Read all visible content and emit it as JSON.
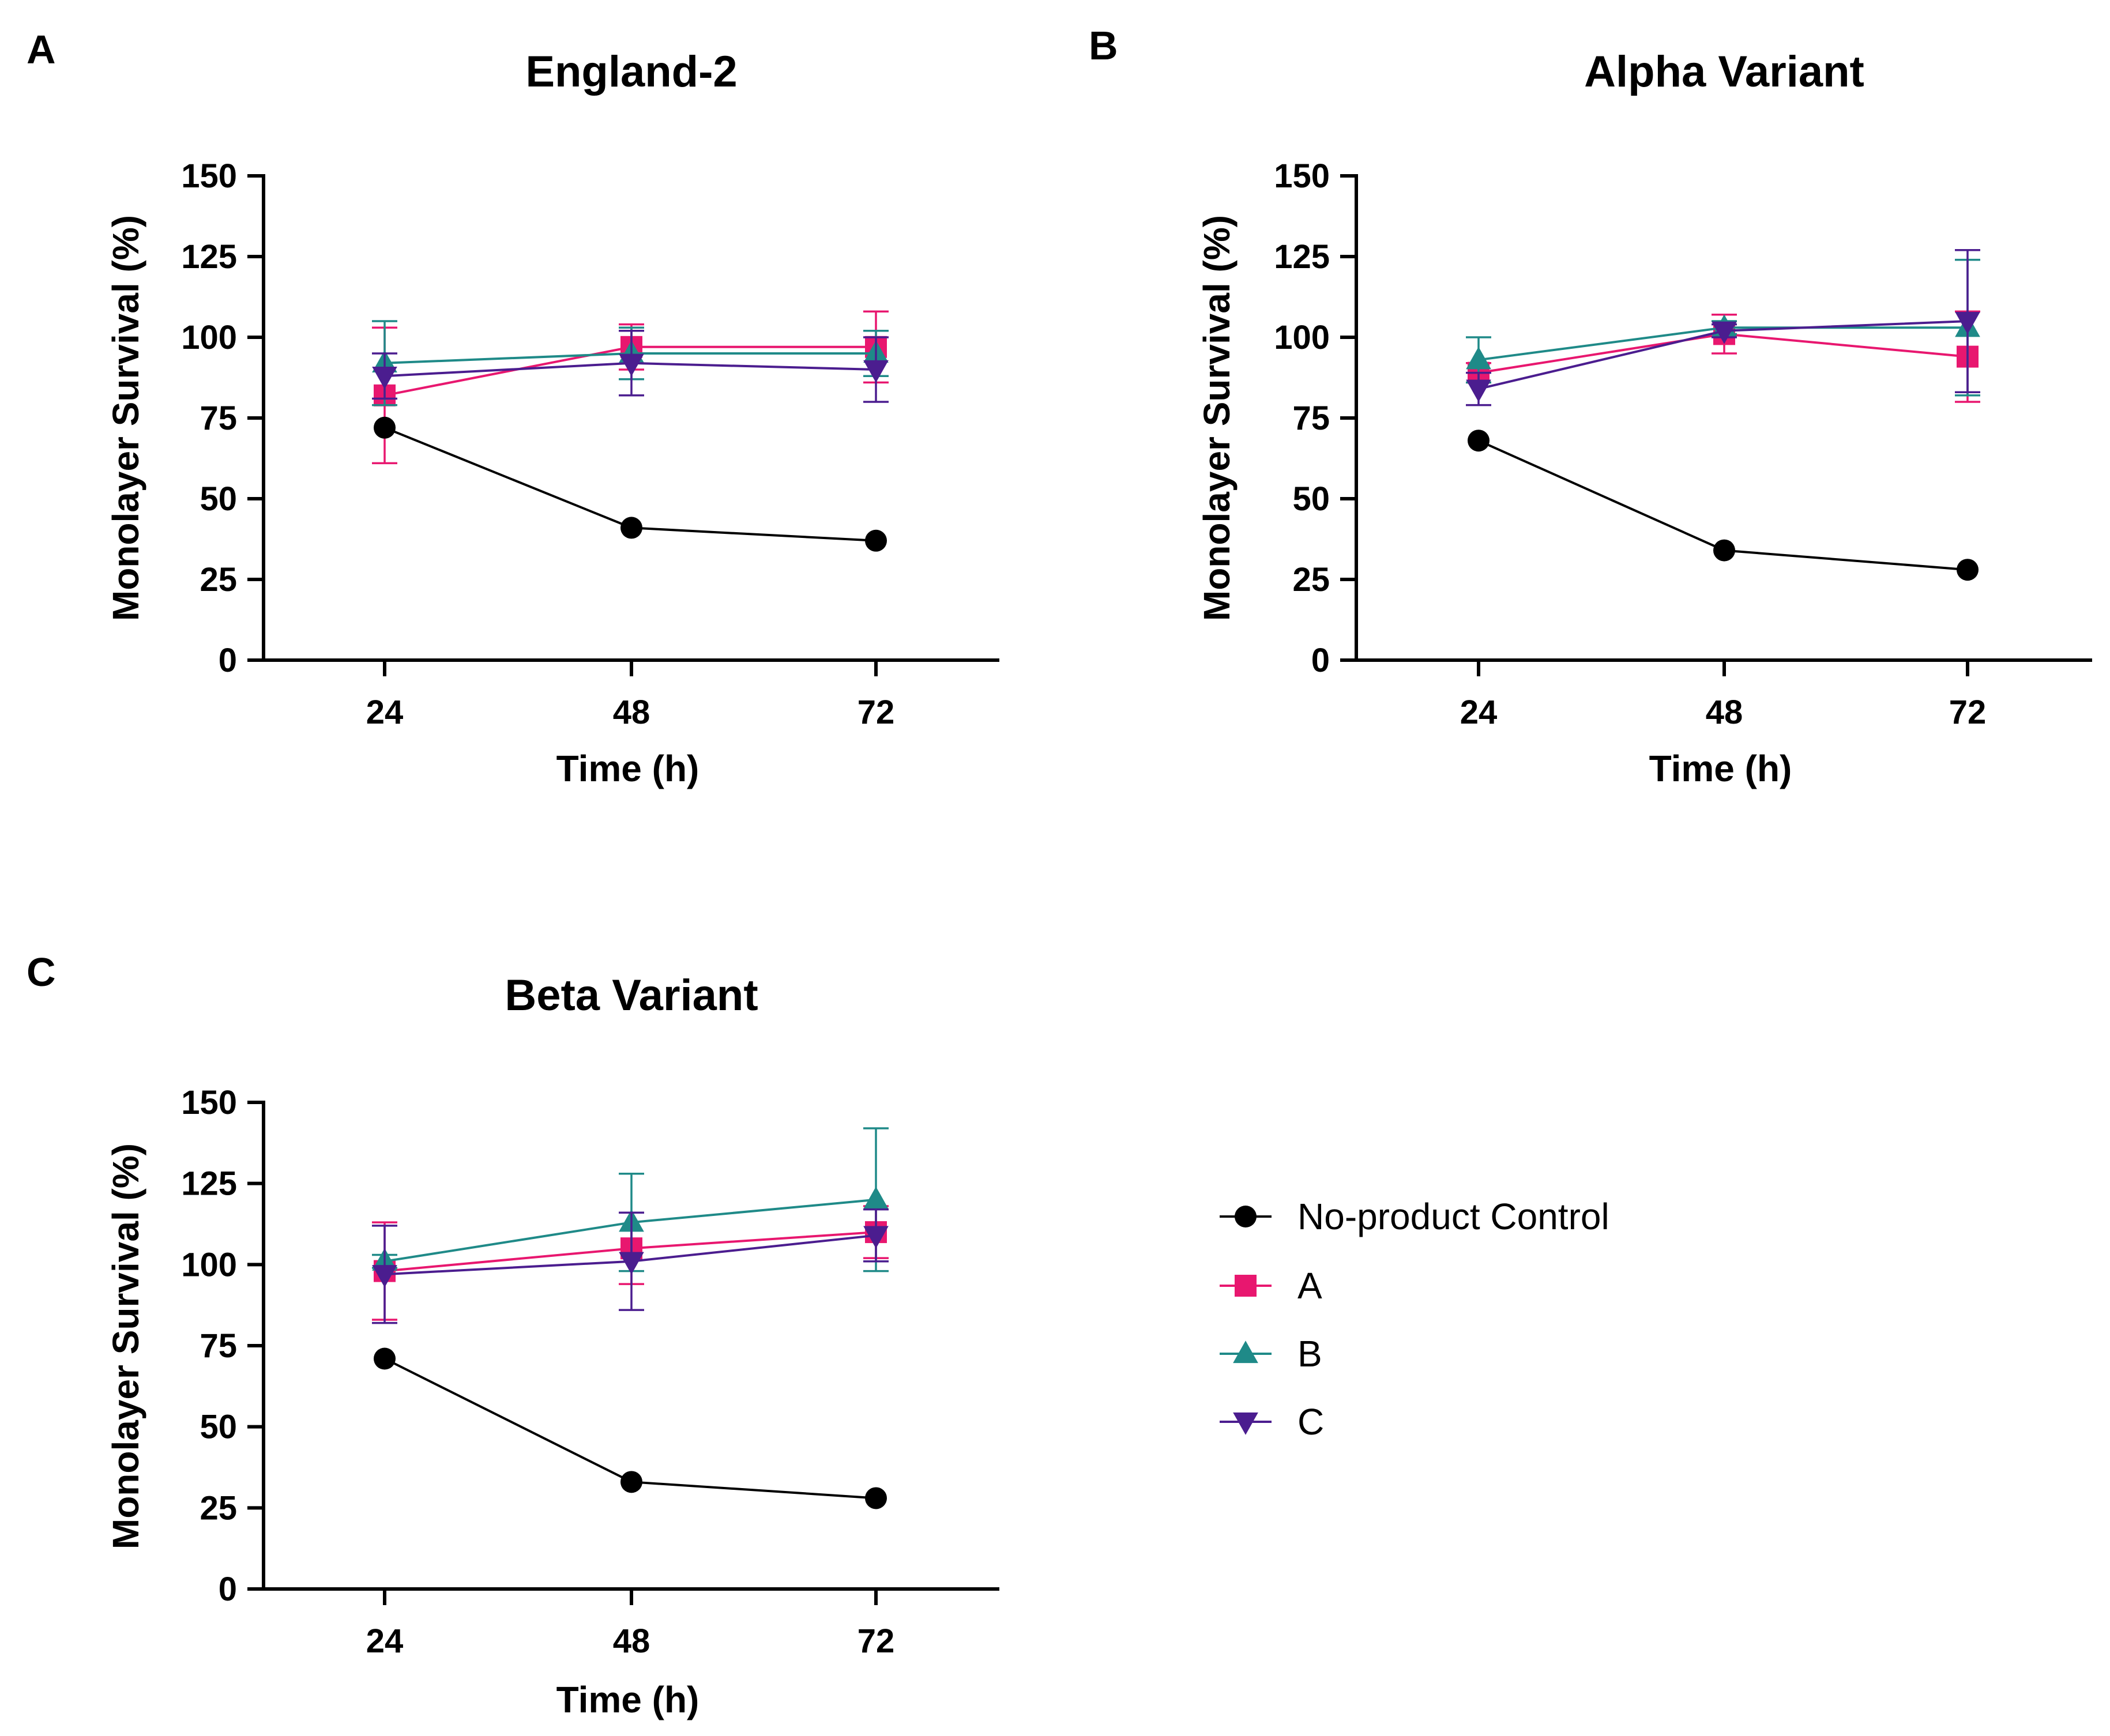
{
  "chart_data": [
    {
      "panel_label": "A",
      "type": "line",
      "title": "England-2",
      "xlabel": "Time (h)",
      "ylabel": "Monolayer Survival (%)",
      "categories": [
        "24",
        "48",
        "72"
      ],
      "yticks": [
        "0",
        "25",
        "50",
        "75",
        "100",
        "125",
        "150"
      ],
      "ylim": [
        0,
        150
      ],
      "series": [
        {
          "name": "No-product Control",
          "color": "#000000",
          "marker": "circle",
          "values": [
            72,
            41,
            37
          ],
          "err": [
            null,
            null,
            null
          ]
        },
        {
          "name": "A",
          "color": "#e8176f",
          "marker": "square",
          "values": [
            82,
            97,
            97
          ],
          "err": [
            21,
            7,
            11
          ]
        },
        {
          "name": "B",
          "color": "#1f8a88",
          "marker": "triangle-up",
          "values": [
            92,
            95,
            95
          ],
          "err": [
            13,
            8,
            7
          ]
        },
        {
          "name": "C",
          "color": "#4b1d8f",
          "marker": "triangle-down",
          "values": [
            88,
            92,
            90
          ],
          "err": [
            7,
            10,
            10
          ]
        }
      ]
    },
    {
      "panel_label": "B",
      "type": "line",
      "title": "Alpha Variant",
      "xlabel": "Time (h)",
      "ylabel": "Monolayer Survival (%)",
      "categories": [
        "24",
        "48",
        "72"
      ],
      "yticks": [
        "0",
        "25",
        "50",
        "75",
        "100",
        "125",
        "150"
      ],
      "ylim": [
        0,
        150
      ],
      "series": [
        {
          "name": "No-product Control",
          "color": "#000000",
          "marker": "circle",
          "values": [
            68,
            34,
            28
          ],
          "err": [
            null,
            null,
            null
          ]
        },
        {
          "name": "A",
          "color": "#e8176f",
          "marker": "square",
          "values": [
            89,
            101,
            94
          ],
          "err": [
            3,
            6,
            14
          ]
        },
        {
          "name": "B",
          "color": "#1f8a88",
          "marker": "triangle-up",
          "values": [
            93,
            103,
            103
          ],
          "err": [
            7,
            2,
            21
          ]
        },
        {
          "name": "C",
          "color": "#4b1d8f",
          "marker": "triangle-down",
          "values": [
            84,
            102,
            105
          ],
          "err": [
            5,
            2,
            22
          ]
        }
      ]
    },
    {
      "panel_label": "C",
      "type": "line",
      "title": "Beta Variant",
      "xlabel": "Time (h)",
      "ylabel": "Monolayer Survival (%)",
      "categories": [
        "24",
        "48",
        "72"
      ],
      "yticks": [
        "0",
        "25",
        "50",
        "75",
        "100",
        "125",
        "150"
      ],
      "ylim": [
        0,
        150
      ],
      "series": [
        {
          "name": "No-product Control",
          "color": "#000000",
          "marker": "circle",
          "values": [
            71,
            33,
            28
          ],
          "err": [
            null,
            null,
            null
          ]
        },
        {
          "name": "A",
          "color": "#e8176f",
          "marker": "square",
          "values": [
            98,
            105,
            110
          ],
          "err": [
            15,
            11,
            8
          ]
        },
        {
          "name": "B",
          "color": "#1f8a88",
          "marker": "triangle-up",
          "values": [
            101,
            113,
            120
          ],
          "err": [
            2,
            15,
            22
          ]
        },
        {
          "name": "C",
          "color": "#4b1d8f",
          "marker": "triangle-down",
          "values": [
            97,
            101,
            109
          ],
          "err": [
            15,
            15,
            8
          ]
        }
      ]
    }
  ],
  "legend": {
    "placement": "right of panel C",
    "items": [
      {
        "label": "No-product Control",
        "color": "#000000",
        "marker": "circle"
      },
      {
        "label": "A",
        "color": "#e8176f",
        "marker": "square"
      },
      {
        "label": "B",
        "color": "#1f8a88",
        "marker": "triangle-up"
      },
      {
        "label": "C",
        "color": "#4b1d8f",
        "marker": "triangle-down"
      }
    ]
  }
}
